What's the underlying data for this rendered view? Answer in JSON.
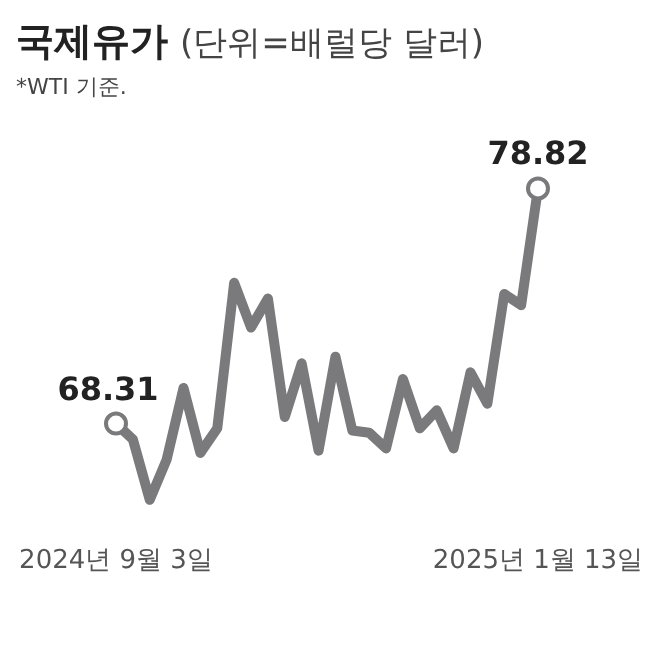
{
  "chart_data": {
    "type": "line",
    "title": "국제유가",
    "subtitle": "(단위=배럴당 달러)",
    "annotations": [
      "*WTI 기준."
    ],
    "categories": [
      "2024년 9월 3일",
      null,
      null,
      null,
      null,
      null,
      null,
      null,
      null,
      null,
      null,
      null,
      null,
      null,
      null,
      null,
      null,
      null,
      null,
      null,
      null,
      null,
      null,
      null,
      null,
      "2025년 1월 13일"
    ],
    "series": [
      {
        "color": "#7a7a7c",
        "values": [
          68.31,
          67.6,
          64.9,
          66.7,
          69.9,
          67.0,
          68.1,
          74.6,
          72.6,
          73.9,
          68.6,
          71.0,
          67.1,
          71.3,
          68.0,
          67.9,
          67.2,
          70.3,
          68.1,
          68.9,
          67.2,
          70.6,
          69.2,
          74.1,
          73.6,
          78.82
        ],
        "value_labels": [
          "68.31",
          null,
          null,
          null,
          null,
          null,
          null,
          null,
          null,
          null,
          null,
          null,
          null,
          null,
          null,
          null,
          null,
          null,
          null,
          null,
          null,
          null,
          null,
          null,
          null,
          "78.82"
        ]
      }
    ],
    "tick_labels": "x",
    "line_style": "solid",
    "grid": false,
    "legend": false
  }
}
